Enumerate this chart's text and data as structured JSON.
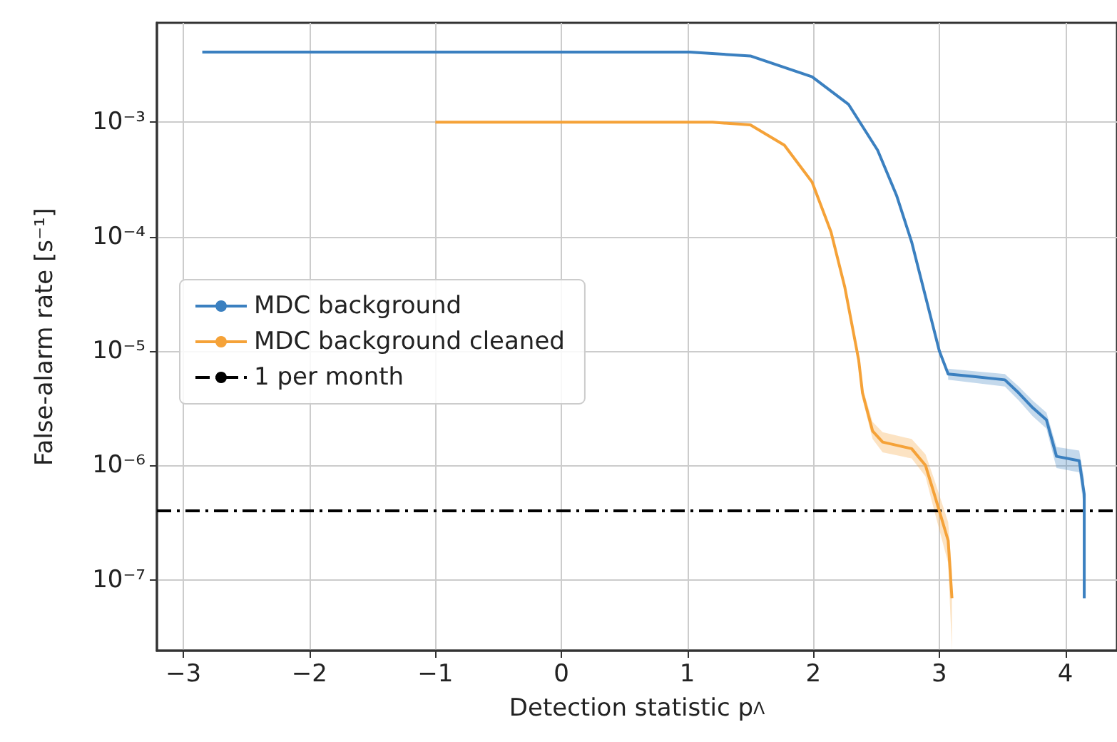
{
  "chart_data": {
    "type": "line",
    "xlabel": "Detection statistic p$_{Λ}$",
    "ylabel": "False-alarm rate [s⁻¹]",
    "log": "y",
    "grid": true,
    "legend": "center left",
    "line_style": "solid",
    "marker": "none",
    "xlim": [
      -3.21,
      4.41
    ],
    "xticks": [
      {
        "value": -3,
        "label": "−3"
      },
      {
        "value": -2,
        "label": "−2"
      },
      {
        "value": -1,
        "label": "−1"
      },
      0,
      1,
      2,
      3,
      4
    ],
    "ylim": [
      2.4e-08,
      0.0074
    ],
    "yticks": [
      {
        "value": 1e-07,
        "label": "10⁻⁷"
      },
      {
        "value": 1e-06,
        "label": "10⁻⁶"
      },
      {
        "value": 1e-05,
        "label": "10⁻⁵"
      },
      {
        "value": 0.0001,
        "label": "10⁻⁴"
      },
      {
        "value": 0.001,
        "label": "10⁻³"
      }
    ],
    "series": [
      {
        "name": "MDC background",
        "color": "#3b80c0",
        "x": [
          -2.85,
          1.02,
          1.5,
          1.99,
          2.28,
          2.51,
          2.66,
          2.78,
          2.89,
          3.0,
          3.07,
          3.26,
          3.52,
          3.63,
          3.74,
          3.85,
          3.93,
          4.11,
          4.15,
          4.15
        ],
        "values": [
          0.0041,
          0.0041,
          0.0038,
          0.0025,
          0.00143,
          0.00057,
          0.00023,
          9e-05,
          3e-05,
          1e-05,
          6.3e-06,
          6e-06,
          5.6e-06,
          4.3e-06,
          3.2e-06,
          2.5e-06,
          1.2e-06,
          1.1e-06,
          5.6e-07,
          6.9e-08
        ],
        "lower": [
          null,
          null,
          null,
          null,
          null,
          null,
          null,
          null,
          null,
          null,
          5.6e-06,
          5.3e-06,
          4.9e-06,
          3.7e-06,
          2.7e-06,
          2.1e-06,
          9.5e-07,
          8.7e-07,
          4e-07,
          2.4e-08
        ],
        "upper": [
          null,
          null,
          null,
          null,
          null,
          null,
          null,
          null,
          null,
          null,
          7e-06,
          6.7e-06,
          6.3e-06,
          4.9e-06,
          3.7e-06,
          2.9e-06,
          1.45e-06,
          1.35e-06,
          7.5e-07,
          1.2e-07
        ]
      },
      {
        "name": "MDC background cleaned",
        "color": "#f5a238",
        "x": [
          -1,
          1.2,
          1.5,
          1.77,
          1.99,
          2.14,
          2.25,
          2.36,
          2.39,
          2.47,
          2.55,
          2.78,
          2.89,
          2.96,
          3.07,
          3.1
        ],
        "values": [
          0.001,
          0.001,
          0.00095,
          0.00063,
          0.0003,
          0.00011,
          3.6e-05,
          8.3e-06,
          4.3e-06,
          2e-06,
          1.6e-06,
          1.4e-06,
          1e-06,
          5.6e-07,
          2.2e-07,
          6.9e-08
        ],
        "lower": [
          null,
          null,
          null,
          null,
          null,
          null,
          null,
          null,
          3.8e-06,
          1.7e-06,
          1.3e-06,
          1.15e-06,
          8e-07,
          4e-07,
          1.4e-07,
          2.4e-08
        ],
        "upper": [
          null,
          null,
          null,
          null,
          null,
          null,
          null,
          null,
          4.8e-06,
          2.4e-06,
          1.95e-06,
          1.7e-06,
          1.25e-06,
          7.5e-07,
          3.2e-07,
          1.2e-07
        ]
      }
    ],
    "ref_lines": [
      {
        "axis": "y",
        "value": 4e-07,
        "label": "1 per month",
        "color": "#000000",
        "line_style": "dashdot"
      }
    ]
  }
}
